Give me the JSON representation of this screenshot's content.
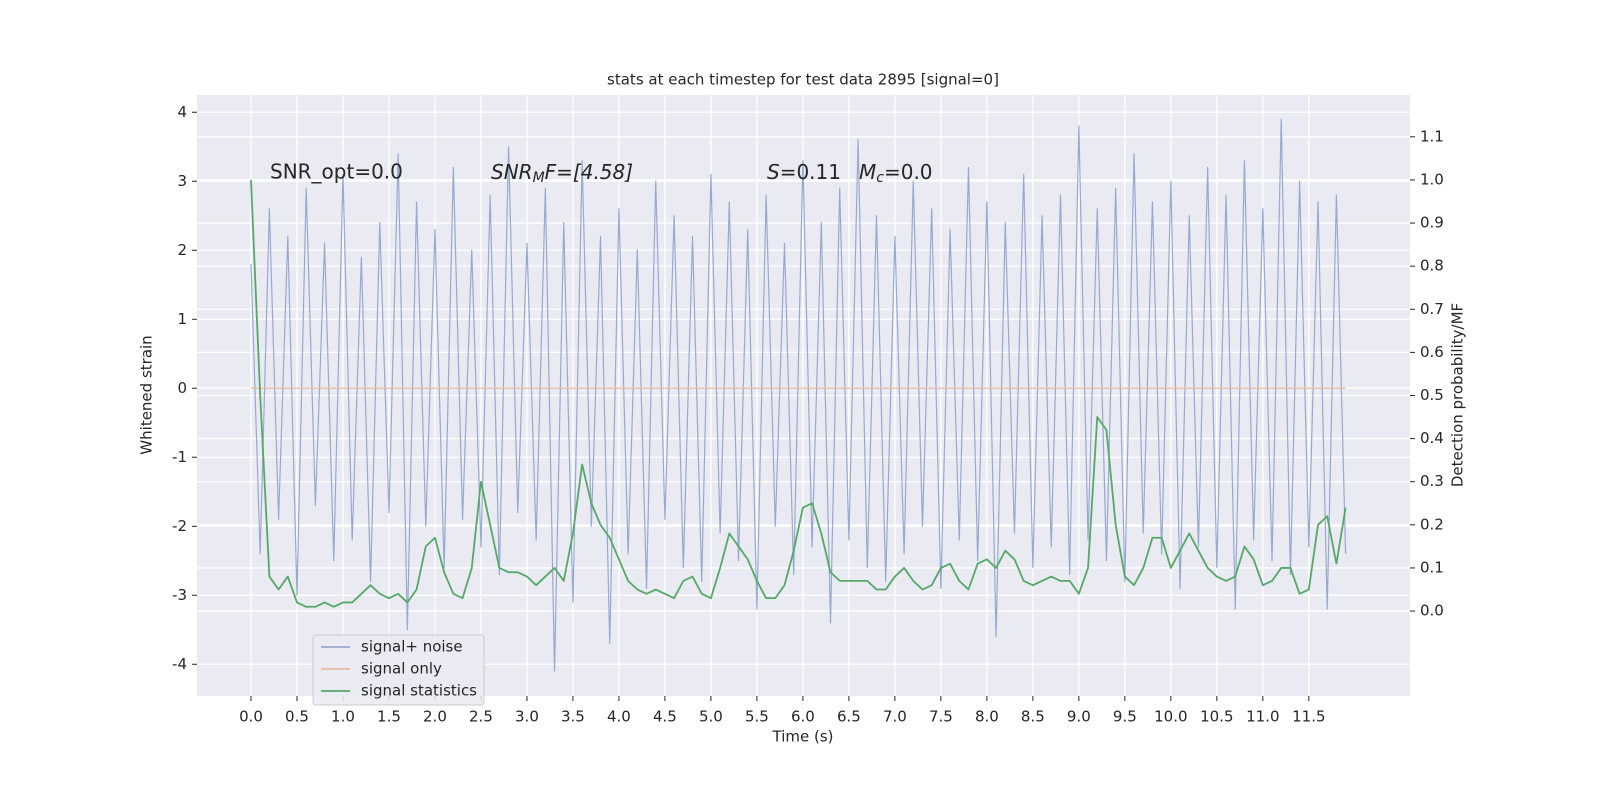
{
  "chart_data": {
    "type": "line",
    "title": "stats at each timestep for test data 2895 [signal=0]",
    "x_label": "Time (s)",
    "y_label": "Whitened strain",
    "y2_label": "Detection probability/MF",
    "annotations": [
      {
        "text": "SNR_opt=0.0"
      },
      {
        "base": "SNR",
        "sub": "M",
        "rest": "F=[4.58]"
      },
      {
        "base": "S",
        "rest": "=0.11"
      },
      {
        "base": "M",
        "sub": "c",
        "rest": "=0.0"
      }
    ],
    "grid": true,
    "legend": "lower left",
    "xlim": [
      -0.587,
      12.6
    ],
    "ylim": [
      -4.46,
      4.25
    ],
    "y2lim": [
      -0.197,
      1.197
    ],
    "xticks": [
      {
        "value": 0,
        "label": "0.0"
      },
      0.5,
      {
        "value": 1,
        "label": "1.0"
      },
      1.5,
      {
        "value": 2,
        "label": "2.0"
      },
      2.5,
      {
        "value": 3,
        "label": "3.0"
      },
      3.5,
      {
        "value": 4,
        "label": "4.0"
      },
      4.5,
      {
        "value": 5,
        "label": "5.0"
      },
      5.5,
      {
        "value": 6,
        "label": "6.0"
      },
      6.5,
      {
        "value": 7,
        "label": "7.0"
      },
      7.5,
      {
        "value": 8,
        "label": "8.0"
      },
      8.5,
      {
        "value": 9,
        "label": "9.0"
      },
      9.5,
      {
        "value": 10,
        "label": "10.0"
      },
      10.5,
      {
        "value": 11,
        "label": "11.0"
      },
      11.5
    ],
    "yticks": [
      -4,
      -3,
      -2,
      -1,
      0,
      1,
      2,
      3,
      4
    ],
    "y2ticks": [
      {
        "value": 0,
        "label": "0.0"
      },
      0.1,
      0.2,
      0.3,
      0.4,
      0.5,
      0.6,
      0.7,
      0.8,
      0.9,
      {
        "value": 1,
        "label": "1.0"
      },
      1.1
    ],
    "x": [
      0,
      0.1,
      0.2,
      0.3,
      0.4,
      0.5,
      0.6,
      0.7,
      0.8,
      0.9,
      1,
      1.1,
      1.2,
      1.3,
      1.4,
      1.5,
      1.6,
      1.7,
      1.8,
      1.9,
      2,
      2.1,
      2.2,
      2.3,
      2.4,
      2.5,
      2.6,
      2.7,
      2.8,
      2.9,
      3,
      3.1,
      3.2,
      3.3,
      3.4,
      3.5,
      3.6,
      3.7,
      3.8,
      3.9,
      4,
      4.1,
      4.2,
      4.3,
      4.4,
      4.5,
      4.6,
      4.7,
      4.8,
      4.9,
      5,
      5.1,
      5.2,
      5.3,
      5.4,
      5.5,
      5.6,
      5.7,
      5.8,
      5.9,
      6,
      6.1,
      6.2,
      6.3,
      6.4,
      6.5,
      6.6,
      6.7,
      6.8,
      6.9,
      7,
      7.1,
      7.2,
      7.3,
      7.4,
      7.5,
      7.6,
      7.7,
      7.8,
      7.9,
      8,
      8.1,
      8.2,
      8.3,
      8.4,
      8.5,
      8.6,
      8.7,
      8.8,
      8.9,
      9,
      9.1,
      9.2,
      9.3,
      9.4,
      9.5,
      9.6,
      9.7,
      9.8,
      9.9,
      10,
      10.1,
      10.2,
      10.3,
      10.4,
      10.5,
      10.6,
      10.7,
      10.8,
      10.9,
      11,
      11.1,
      11.2,
      11.3,
      11.4,
      11.5,
      11.6,
      11.7,
      11.8,
      11.9
    ],
    "series": [
      {
        "name": "signal+ noise",
        "color": "#98a9cf",
        "values": [
          1.8,
          -2.4,
          2.6,
          -1.9,
          2.2,
          -3.0,
          2.9,
          -1.7,
          2.1,
          -2.5,
          3.1,
          -2.2,
          1.9,
          -2.8,
          2.4,
          -1.8,
          3.4,
          -3.5,
          2.7,
          -2.0,
          2.3,
          -2.6,
          3.2,
          -1.9,
          2.0,
          -2.3,
          2.8,
          -2.7,
          3.5,
          -1.8,
          2.1,
          -2.2,
          2.9,
          -4.1,
          2.4,
          -3.1,
          3.3,
          -2.0,
          2.2,
          -3.7,
          2.6,
          -2.4,
          2.0,
          -2.9,
          3.0,
          -1.9,
          2.5,
          -2.6,
          2.2,
          -2.8,
          3.1,
          -2.1,
          2.7,
          -2.5,
          2.3,
          -3.2,
          2.8,
          -2.0,
          2.1,
          -2.7,
          3.3,
          -2.3,
          2.4,
          -3.4,
          2.9,
          -2.2,
          3.6,
          -2.6,
          2.5,
          -2.8,
          2.2,
          -2.4,
          3.0,
          -2.0,
          2.6,
          -2.9,
          2.3,
          -2.2,
          3.2,
          -2.5,
          2.7,
          -3.6,
          2.4,
          -2.1,
          3.1,
          -2.6,
          2.5,
          -2.3,
          2.8,
          -2.7,
          3.8,
          -2.2,
          2.6,
          -2.5,
          2.9,
          -2.8,
          3.4,
          -2.1,
          2.7,
          -2.4,
          3.0,
          -2.9,
          2.5,
          -2.3,
          3.2,
          -2.6,
          2.8,
          -3.2,
          3.3,
          -2.2,
          2.6,
          -2.5,
          3.9,
          -2.7,
          3.0,
          -2.3,
          2.7,
          -3.2,
          2.8,
          -2.4
        ]
      },
      {
        "name": "signal only",
        "color": "#eeb9a0",
        "values": [
          0,
          0,
          0,
          0,
          0,
          0,
          0,
          0,
          0,
          0,
          0,
          0,
          0,
          0,
          0,
          0,
          0,
          0,
          0,
          0,
          0,
          0,
          0,
          0,
          0,
          0,
          0,
          0,
          0,
          0,
          0,
          0,
          0,
          0,
          0,
          0,
          0,
          0,
          0,
          0,
          0,
          0,
          0,
          0,
          0,
          0,
          0,
          0,
          0,
          0,
          0,
          0,
          0,
          0,
          0,
          0,
          0,
          0,
          0,
          0,
          0,
          0,
          0,
          0,
          0,
          0,
          0,
          0,
          0,
          0,
          0,
          0,
          0,
          0,
          0,
          0,
          0,
          0,
          0,
          0,
          0,
          0,
          0,
          0,
          0,
          0,
          0,
          0,
          0,
          0,
          0,
          0,
          0,
          0,
          0,
          0,
          0,
          0,
          0,
          0,
          0,
          0,
          0,
          0,
          0,
          0,
          0,
          0,
          0,
          0,
          0,
          0,
          0,
          0,
          0,
          0,
          0,
          0,
          0,
          0
        ]
      },
      {
        "name": "signal statistics",
        "color": "#55a868",
        "axis": "y2",
        "values": [
          1.0,
          0.5,
          0.08,
          0.05,
          0.08,
          0.02,
          0.01,
          0.01,
          0.02,
          0.01,
          0.02,
          0.02,
          0.04,
          0.06,
          0.04,
          0.03,
          0.04,
          0.02,
          0.05,
          0.15,
          0.17,
          0.09,
          0.04,
          0.03,
          0.1,
          0.3,
          0.2,
          0.1,
          0.09,
          0.09,
          0.08,
          0.06,
          0.08,
          0.1,
          0.07,
          0.18,
          0.34,
          0.25,
          0.2,
          0.17,
          0.12,
          0.07,
          0.05,
          0.04,
          0.05,
          0.04,
          0.03,
          0.07,
          0.08,
          0.04,
          0.03,
          0.1,
          0.18,
          0.15,
          0.12,
          0.07,
          0.03,
          0.03,
          0.06,
          0.14,
          0.24,
          0.25,
          0.18,
          0.09,
          0.07,
          0.07,
          0.07,
          0.07,
          0.05,
          0.05,
          0.08,
          0.1,
          0.07,
          0.05,
          0.06,
          0.1,
          0.11,
          0.07,
          0.05,
          0.11,
          0.12,
          0.1,
          0.14,
          0.12,
          0.07,
          0.06,
          0.07,
          0.08,
          0.07,
          0.07,
          0.04,
          0.1,
          0.45,
          0.42,
          0.2,
          0.08,
          0.06,
          0.1,
          0.17,
          0.17,
          0.1,
          0.14,
          0.18,
          0.14,
          0.1,
          0.08,
          0.07,
          0.08,
          0.15,
          0.12,
          0.06,
          0.07,
          0.1,
          0.1,
          0.04,
          0.05,
          0.2,
          0.22,
          0.11,
          0.24
        ]
      }
    ]
  }
}
